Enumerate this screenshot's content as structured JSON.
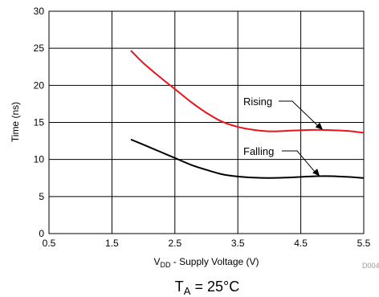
{
  "chart_data": {
    "type": "line",
    "xlabel_main": "V",
    "xlabel_sub": "DD",
    "xlabel_rest": " - Supply Voltage (V)",
    "ylabel": "Time (ns)",
    "xlim": [
      0.5,
      5.5
    ],
    "ylim": [
      0,
      30
    ],
    "x_ticks": [
      "0.5",
      "1.5",
      "2.5",
      "3.5",
      "4.5",
      "5.5"
    ],
    "y_ticks": [
      "0",
      "5",
      "10",
      "15",
      "20",
      "25",
      "30"
    ],
    "grid": true,
    "series": [
      {
        "name": "Rising",
        "color": "#e8141b",
        "x": [
          1.8,
          2.0,
          2.25,
          2.5,
          2.75,
          3.0,
          3.25,
          3.5,
          3.75,
          4.0,
          4.25,
          4.5,
          4.75,
          5.0,
          5.25,
          5.5
        ],
        "y": [
          24.7,
          23.0,
          21.2,
          19.5,
          17.8,
          16.3,
          15.1,
          14.4,
          14.0,
          13.8,
          13.85,
          13.95,
          14.0,
          13.95,
          13.85,
          13.6
        ]
      },
      {
        "name": "Falling",
        "color": "#000000",
        "x": [
          1.8,
          2.0,
          2.25,
          2.5,
          2.75,
          3.0,
          3.25,
          3.5,
          3.75,
          4.0,
          4.25,
          4.5,
          4.75,
          5.0,
          5.25,
          5.5
        ],
        "y": [
          12.7,
          12.0,
          11.1,
          10.2,
          9.3,
          8.6,
          8.0,
          7.7,
          7.55,
          7.5,
          7.55,
          7.65,
          7.75,
          7.75,
          7.65,
          7.5
        ]
      }
    ],
    "annotations": [
      {
        "series": "Rising",
        "text": "Rising",
        "arrow_to": [
          4.85,
          14.0
        ]
      },
      {
        "series": "Falling",
        "text": "Falling",
        "arrow_to": [
          4.8,
          7.75
        ]
      }
    ],
    "figure_code": "D004",
    "caption_main": "T",
    "caption_sub": "A",
    "caption_rest": " = 25°C"
  }
}
